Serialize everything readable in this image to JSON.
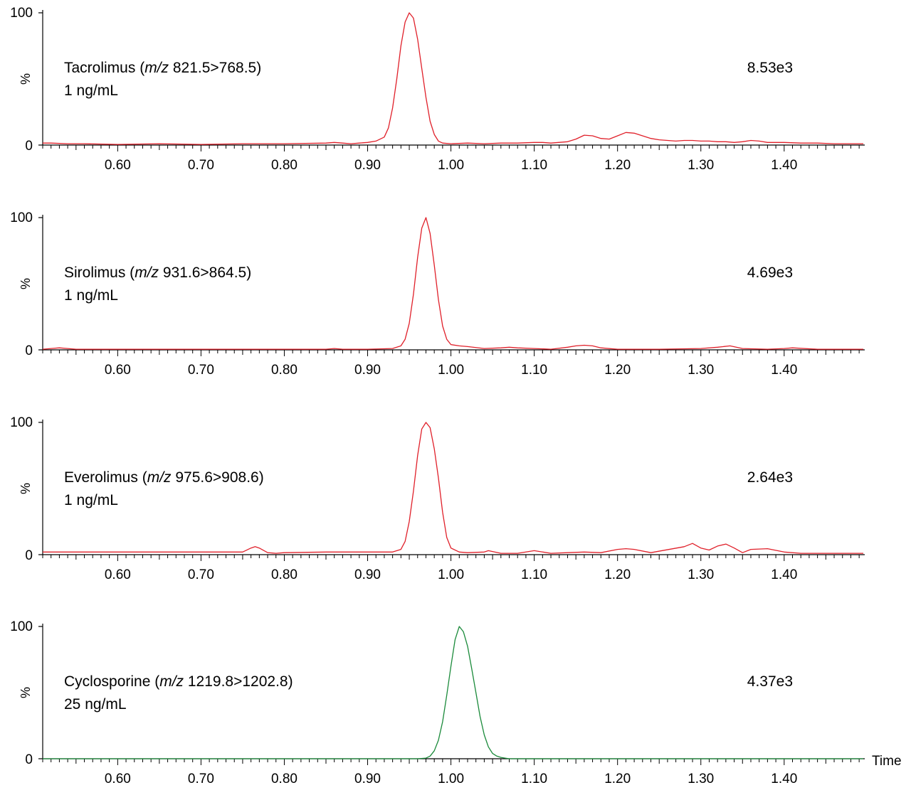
{
  "x_axis": {
    "ticks": [
      "0.60",
      "0.70",
      "0.80",
      "0.90",
      "1.00",
      "1.10",
      "1.20",
      "1.30",
      "1.40"
    ],
    "label": "Time"
  },
  "y_axis": {
    "top": "100",
    "bottom": "0",
    "label": "%"
  },
  "colors": {
    "red": "#e0202a",
    "green": "#1a8a3a"
  },
  "chart_data": [
    {
      "type": "line",
      "compound_pre": "Tacrolimus (",
      "mz_italic": "m/z",
      "transition_post": " 821.5>768.5)",
      "concentration": "1 ng/mL",
      "intensity": "8.53e3",
      "xlim": [
        0.51,
        1.495
      ],
      "ylim": [
        0,
        100
      ],
      "color": "red",
      "series": [
        {
          "x": [
            0.51,
            0.52,
            0.54,
            0.56,
            0.6,
            0.65,
            0.7,
            0.75,
            0.8,
            0.85,
            0.86,
            0.87,
            0.88,
            0.89,
            0.9,
            0.91,
            0.92,
            0.925,
            0.93,
            0.935,
            0.94,
            0.945,
            0.95,
            0.955,
            0.96,
            0.965,
            0.97,
            0.975,
            0.98,
            0.985,
            0.99,
            1.0,
            1.02,
            1.04,
            1.06,
            1.08,
            1.1,
            1.11,
            1.12,
            1.14,
            1.15,
            1.16,
            1.17,
            1.18,
            1.19,
            1.2,
            1.21,
            1.22,
            1.23,
            1.24,
            1.25,
            1.26,
            1.27,
            1.28,
            1.29,
            1.3,
            1.31,
            1.32,
            1.33,
            1.34,
            1.35,
            1.36,
            1.37,
            1.38,
            1.4,
            1.42,
            1.44,
            1.46,
            1.48,
            1.495
          ],
          "y": [
            1.5,
            1.5,
            1,
            1,
            0.5,
            1,
            0.5,
            1,
            1,
            1.5,
            2,
            1.5,
            1,
            1.5,
            2,
            3,
            6,
            13,
            28,
            50,
            75,
            93,
            100,
            96,
            80,
            58,
            36,
            18,
            8,
            3,
            1.5,
            1,
            1.5,
            1,
            1.5,
            1.5,
            2,
            2,
            1.5,
            2.5,
            4.5,
            7.5,
            7,
            5,
            4.5,
            7,
            9.5,
            9,
            7,
            5,
            4,
            3.5,
            3,
            3.5,
            3.5,
            3,
            3,
            2.5,
            2.5,
            2,
            2.5,
            3.5,
            3,
            2,
            2,
            1.5,
            1.5,
            1,
            1,
            1
          ]
        }
      ]
    },
    {
      "type": "line",
      "compound_pre": "Sirolimus (",
      "mz_italic": "m/z",
      "transition_post": " 931.6>864.5)",
      "concentration": "1 ng/mL",
      "intensity": "4.69e3",
      "xlim": [
        0.51,
        1.495
      ],
      "ylim": [
        0,
        100
      ],
      "color": "red",
      "series": [
        {
          "x": [
            0.51,
            0.52,
            0.53,
            0.54,
            0.55,
            0.6,
            0.65,
            0.7,
            0.75,
            0.8,
            0.85,
            0.86,
            0.87,
            0.9,
            0.93,
            0.94,
            0.945,
            0.95,
            0.955,
            0.96,
            0.965,
            0.97,
            0.975,
            0.98,
            0.985,
            0.99,
            0.995,
            1.0,
            1.01,
            1.02,
            1.04,
            1.06,
            1.07,
            1.08,
            1.1,
            1.12,
            1.14,
            1.15,
            1.16,
            1.17,
            1.18,
            1.2,
            1.25,
            1.3,
            1.32,
            1.335,
            1.35,
            1.38,
            1.4,
            1.41,
            1.44,
            1.495
          ],
          "y": [
            0.5,
            1,
            1.5,
            1,
            0.5,
            0.5,
            0.5,
            0.5,
            0.5,
            0.5,
            0.5,
            1,
            0.5,
            0.5,
            1,
            3,
            8,
            20,
            42,
            70,
            92,
            100,
            88,
            64,
            38,
            18,
            8,
            4,
            3,
            2.5,
            1,
            1.5,
            2,
            1.5,
            1,
            0.5,
            2,
            3,
            3.5,
            3,
            1.5,
            0.5,
            0.5,
            1,
            2,
            3,
            1,
            0.5,
            1,
            1.5,
            0.5,
            0.5
          ]
        }
      ]
    },
    {
      "type": "line",
      "compound_pre": "Everolimus (",
      "mz_italic": "m/z",
      "transition_post": " 975.6>908.6)",
      "concentration": "1 ng/mL",
      "intensity": "2.64e3",
      "xlim": [
        0.51,
        1.495
      ],
      "ylim": [
        0,
        100
      ],
      "color": "red",
      "series": [
        {
          "x": [
            0.51,
            0.55,
            0.6,
            0.65,
            0.7,
            0.75,
            0.76,
            0.765,
            0.77,
            0.78,
            0.79,
            0.8,
            0.85,
            0.9,
            0.93,
            0.94,
            0.945,
            0.95,
            0.955,
            0.96,
            0.965,
            0.97,
            0.975,
            0.98,
            0.985,
            0.99,
            0.995,
            1.0,
            1.01,
            1.02,
            1.04,
            1.045,
            1.06,
            1.08,
            1.1,
            1.12,
            1.14,
            1.16,
            1.18,
            1.2,
            1.21,
            1.22,
            1.24,
            1.28,
            1.29,
            1.3,
            1.31,
            1.32,
            1.33,
            1.34,
            1.35,
            1.36,
            1.38,
            1.4,
            1.42,
            1.495
          ],
          "y": [
            2,
            2,
            2,
            2,
            2,
            2,
            5,
            6,
            5,
            1.5,
            1,
            1.5,
            2,
            2,
            2,
            4,
            10,
            25,
            48,
            75,
            95,
            100,
            96,
            80,
            58,
            32,
            13,
            5,
            2,
            1.5,
            2,
            3,
            1,
            1,
            3,
            1,
            1.5,
            2,
            1.5,
            4,
            4.5,
            4,
            1.5,
            6,
            8.5,
            5,
            3.5,
            6.5,
            8,
            5,
            1.5,
            4,
            4.5,
            2,
            1,
            1
          ]
        }
      ]
    },
    {
      "type": "line",
      "compound_pre": "Cyclosporine (",
      "mz_italic": "m/z",
      "transition_post": " 1219.8>1202.8)",
      "concentration": "25 ng/mL",
      "intensity": "4.37e3",
      "xlim": [
        0.51,
        1.495
      ],
      "ylim": [
        0,
        100
      ],
      "color": "green",
      "series": [
        {
          "x": [
            0.51,
            0.6,
            0.7,
            0.8,
            0.9,
            0.96,
            0.97,
            0.975,
            0.98,
            0.985,
            0.99,
            0.995,
            1.0,
            1.005,
            1.01,
            1.015,
            1.02,
            1.025,
            1.03,
            1.035,
            1.04,
            1.045,
            1.05,
            1.055,
            1.06,
            1.065,
            1.07,
            1.1,
            1.2,
            1.3,
            1.4,
            1.495
          ],
          "y": [
            0,
            0,
            0,
            0,
            0,
            0,
            0.5,
            2,
            6,
            14,
            28,
            48,
            70,
            90,
            100,
            96,
            85,
            68,
            50,
            32,
            18,
            9,
            4,
            2,
            1,
            0.5,
            0,
            0,
            0,
            0,
            0,
            0
          ]
        }
      ]
    }
  ]
}
